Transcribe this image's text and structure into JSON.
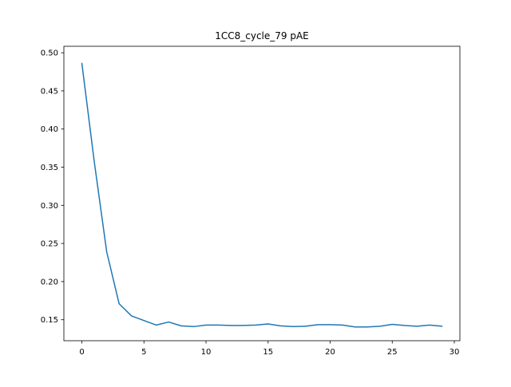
{
  "chart_data": {
    "type": "line",
    "title": "1CC8_cycle_79 pAE",
    "xlabel": "",
    "ylabel": "",
    "xlim": [
      -1.45,
      30.45
    ],
    "ylim": [
      0.1225,
      0.5085
    ],
    "xticks": [
      0,
      5,
      10,
      15,
      20,
      25,
      30
    ],
    "xtick_labels": [
      "0",
      "5",
      "10",
      "15",
      "20",
      "25",
      "30"
    ],
    "yticks": [
      0.15,
      0.2,
      0.25,
      0.3,
      0.35,
      0.4,
      0.45,
      0.5
    ],
    "ytick_labels": [
      "0.15",
      "0.20",
      "0.25",
      "0.30",
      "0.35",
      "0.40",
      "0.45",
      "0.50"
    ],
    "grid": false,
    "legend": "none",
    "series": [
      {
        "color": "#1f77b4",
        "x": [
          0,
          1,
          2,
          3,
          4,
          5,
          6,
          7,
          8,
          9,
          10,
          11,
          12,
          13,
          14,
          15,
          16,
          17,
          18,
          19,
          20,
          21,
          22,
          23,
          24,
          25,
          26,
          27,
          28,
          29
        ],
        "y": [
          0.486,
          0.357,
          0.239,
          0.171,
          0.155,
          0.149,
          0.143,
          0.147,
          0.142,
          0.141,
          0.143,
          0.143,
          0.1425,
          0.1425,
          0.143,
          0.1445,
          0.142,
          0.141,
          0.1415,
          0.1435,
          0.1435,
          0.143,
          0.1405,
          0.1405,
          0.1415,
          0.144,
          0.1425,
          0.1415,
          0.143,
          0.1415
        ]
      }
    ]
  }
}
